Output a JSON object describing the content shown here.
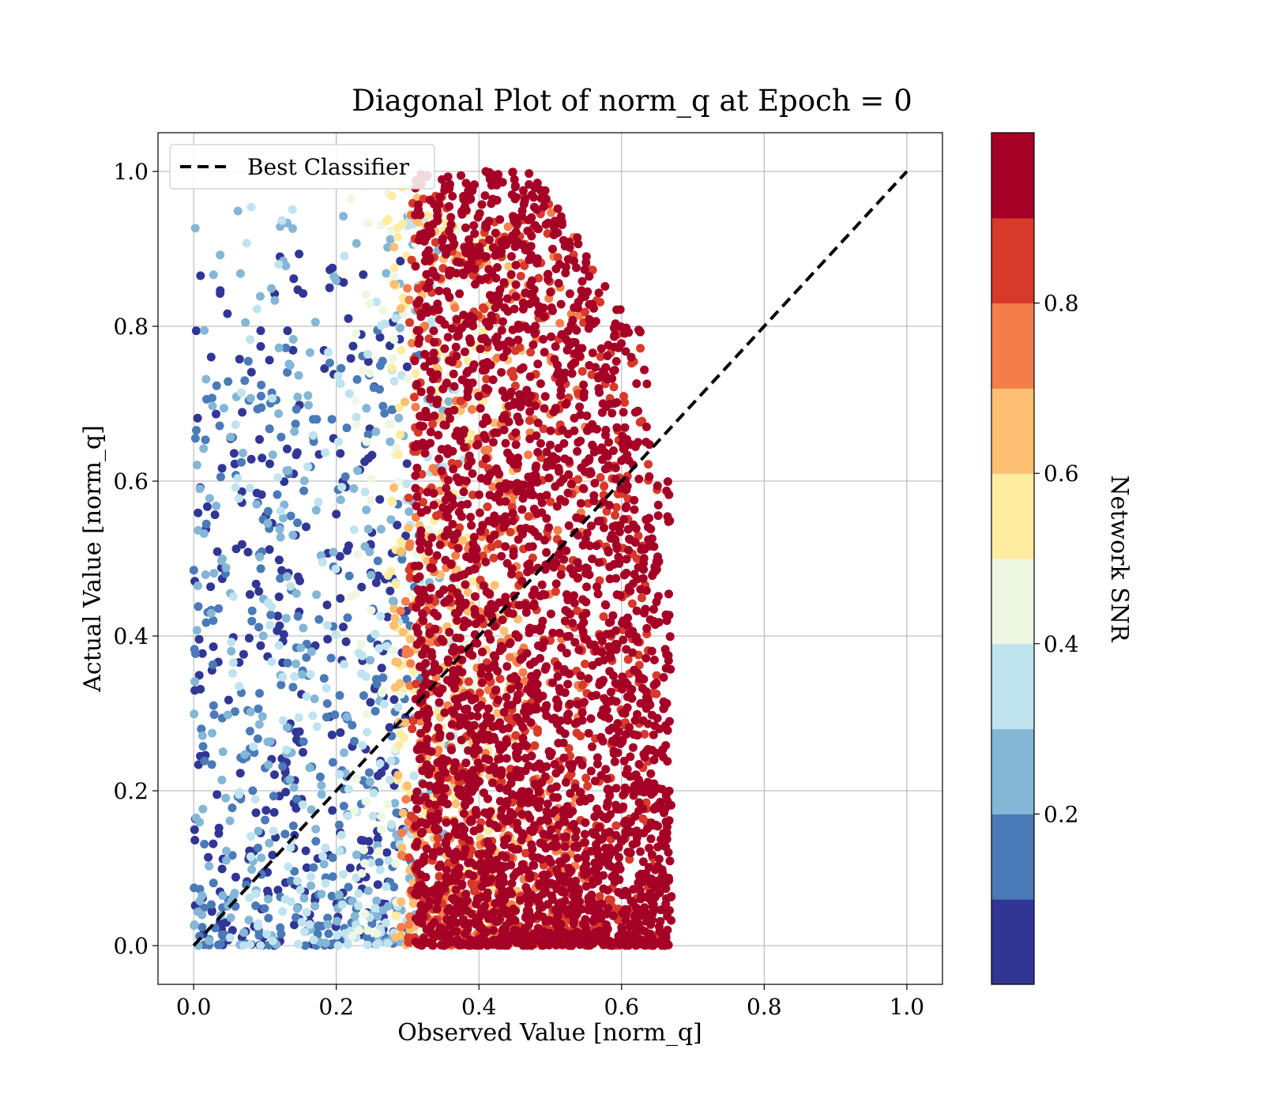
{
  "chart_data": {
    "type": "scatter",
    "title": "Diagonal Plot of norm_q at Epoch = 0",
    "xlabel": "Observed Value [norm_q]",
    "ylabel": "Actual Value [norm_q]",
    "xlim": [
      -0.05,
      1.05
    ],
    "ylim": [
      -0.05,
      1.05
    ],
    "x_ticks": [
      "0.0",
      "0.2",
      "0.4",
      "0.6",
      "0.8",
      "1.0"
    ],
    "y_ticks": [
      "0.0",
      "0.2",
      "0.4",
      "0.6",
      "0.8",
      "1.0"
    ],
    "grid": true,
    "legend": {
      "placement": "upper-left",
      "entries": [
        {
          "label": "Best Classifier",
          "style": "dashed",
          "color": "#000000"
        }
      ]
    },
    "reference_line": {
      "label": "Best Classifier",
      "x": [
        0.0,
        1.0
      ],
      "y": [
        0.0,
        1.0
      ]
    },
    "colorbar": {
      "label": "Network SNR",
      "range": [
        0.0,
        1.0
      ],
      "ticks": [
        "0.2",
        "0.4",
        "0.6",
        "0.8"
      ],
      "colors": [
        "#313695",
        "#4a7ab7",
        "#84b6d6",
        "#bfe3ef",
        "#eef7e1",
        "#feeca0",
        "#fdbf71",
        "#f57d4a",
        "#d7392b",
        "#a50026"
      ]
    },
    "point_bands": [
      {
        "snr": 0.05,
        "x_range": [
          0.0,
          0.3
        ],
        "y_range": [
          0.0,
          0.9
        ],
        "approx_count": 320
      },
      {
        "snr": 0.15,
        "x_range": [
          0.0,
          0.33
        ],
        "y_range": [
          0.0,
          0.8
        ],
        "approx_count": 280
      },
      {
        "snr": 0.25,
        "x_range": [
          0.0,
          0.37
        ],
        "y_range": [
          0.0,
          0.95
        ],
        "approx_count": 260
      },
      {
        "snr": 0.35,
        "x_range": [
          0.05,
          0.38
        ],
        "y_range": [
          0.0,
          0.97
        ],
        "approx_count": 220
      },
      {
        "snr": 0.45,
        "x_range": [
          0.22,
          0.4
        ],
        "y_range": [
          0.0,
          1.0
        ],
        "approx_count": 150
      },
      {
        "snr": 0.55,
        "x_range": [
          0.27,
          0.42
        ],
        "y_range": [
          0.0,
          0.98
        ],
        "approx_count": 170
      },
      {
        "snr": 0.65,
        "x_range": [
          0.28,
          0.46
        ],
        "y_range": [
          0.0,
          0.97
        ],
        "approx_count": 230
      },
      {
        "snr": 0.75,
        "x_range": [
          0.29,
          0.55
        ],
        "y_range": [
          0.0,
          0.95
        ],
        "approx_count": 320
      },
      {
        "snr": 0.85,
        "x_range": [
          0.3,
          0.65
        ],
        "y_range": [
          0.0,
          0.97
        ],
        "approx_count": 650
      },
      {
        "snr": 0.95,
        "x_range": [
          0.31,
          0.67
        ],
        "y_range": [
          0.0,
          1.0
        ],
        "approx_count": 2600
      }
    ]
  }
}
